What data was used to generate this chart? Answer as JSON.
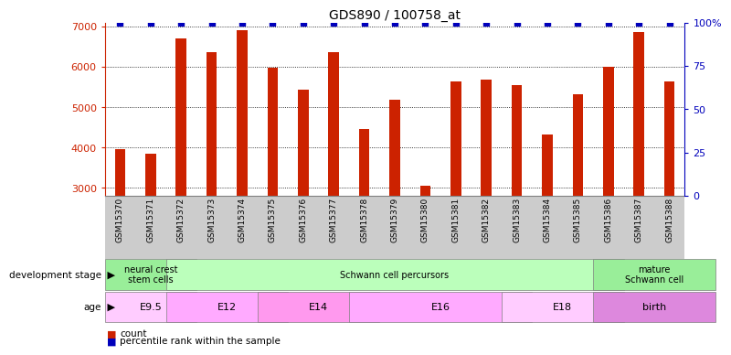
{
  "title": "GDS890 / 100758_at",
  "samples": [
    "GSM15370",
    "GSM15371",
    "GSM15372",
    "GSM15373",
    "GSM15374",
    "GSM15375",
    "GSM15376",
    "GSM15377",
    "GSM15378",
    "GSM15379",
    "GSM15380",
    "GSM15381",
    "GSM15382",
    "GSM15383",
    "GSM15384",
    "GSM15385",
    "GSM15386",
    "GSM15387",
    "GSM15388"
  ],
  "counts": [
    3950,
    3850,
    6700,
    6370,
    6900,
    5990,
    5430,
    6360,
    4460,
    5190,
    3060,
    5630,
    5680,
    5550,
    4330,
    5320,
    6000,
    6870,
    5640
  ],
  "percentiles": [
    100,
    100,
    100,
    100,
    100,
    100,
    100,
    100,
    100,
    100,
    100,
    100,
    100,
    100,
    100,
    100,
    100,
    100,
    100
  ],
  "bar_color": "#cc2200",
  "percentile_color": "#0000bb",
  "ylim_left": [
    2800,
    7100
  ],
  "ylim_right": [
    0,
    100
  ],
  "yticks_left": [
    3000,
    4000,
    5000,
    6000,
    7000
  ],
  "yticks_right": [
    0,
    25,
    50,
    75,
    100
  ],
  "ytick_labels_right": [
    "0",
    "25",
    "50",
    "75",
    "100%"
  ],
  "grid_color": "#000000",
  "development_stages": [
    {
      "label": "neural crest\nstem cells",
      "start": 0,
      "end": 2,
      "color": "#99ee99"
    },
    {
      "label": "Schwann cell percursors",
      "start": 2,
      "end": 16,
      "color": "#bbffbb"
    },
    {
      "label": "mature\nSchwann cell",
      "start": 16,
      "end": 19,
      "color": "#99ee99"
    }
  ],
  "ages": [
    {
      "label": "E9.5",
      "start": 0,
      "end": 2,
      "color": "#ffccff"
    },
    {
      "label": "E12",
      "start": 2,
      "end": 5,
      "color": "#ffaaff"
    },
    {
      "label": "E14",
      "start": 5,
      "end": 8,
      "color": "#ff99ee"
    },
    {
      "label": "E16",
      "start": 8,
      "end": 13,
      "color": "#ffaaff"
    },
    {
      "label": "E18",
      "start": 13,
      "end": 16,
      "color": "#ffccff"
    },
    {
      "label": "birth",
      "start": 16,
      "end": 19,
      "color": "#dd88dd"
    }
  ],
  "legend_count_color": "#cc2200",
  "legend_percentile_color": "#0000bb",
  "dev_stage_label": "development stage",
  "age_label": "age",
  "xtick_bg": "#cccccc"
}
